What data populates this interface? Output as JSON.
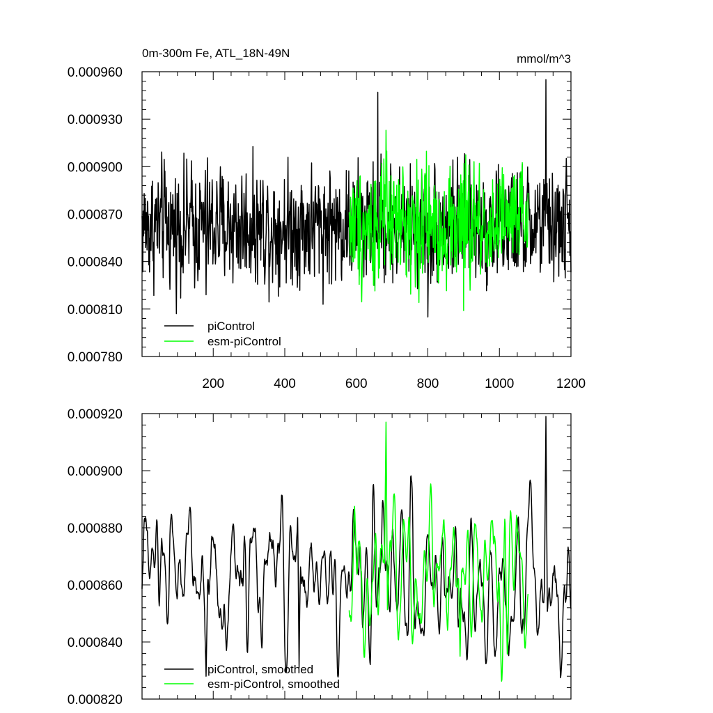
{
  "chart_data": [
    {
      "type": "line",
      "title": "0m-300m Fe, ATL_18N-49N",
      "units": "mmol/m^3",
      "xlabel": "",
      "ylabel": "",
      "xlim": [
        1,
        1200
      ],
      "ylim": [
        0.00078,
        0.00096
      ],
      "x_ticks": [
        200,
        400,
        600,
        800,
        1000,
        1200
      ],
      "x_tick_labels": [
        "200",
        "400",
        "600",
        "800",
        "1000",
        "1200"
      ],
      "y_ticks": [
        0.00078,
        0.00081,
        0.00084,
        0.00087,
        0.0009,
        0.00093,
        0.00096
      ],
      "y_tick_labels": [
        "0.000780",
        "0.000810",
        "0.000840",
        "0.000870",
        "0.000900",
        "0.000930",
        "0.000960"
      ],
      "legend_position": "bottom-left",
      "series": [
        {
          "name": "piControl",
          "color": "#000000",
          "x_range": [
            1,
            1200
          ],
          "mean": 0.000862,
          "sd": 1.8e-05,
          "peaks": [
            [
              180,
              0.000819
            ],
            [
              660,
              0.000947
            ],
            [
              800,
              0.000805
            ],
            [
              1130,
              0.000955
            ]
          ],
          "smoothing": 0
        },
        {
          "name": "esm-piControl",
          "color": "#00ff00",
          "x_range": [
            580,
            1080
          ],
          "mean": 0.000864,
          "sd": 1.8e-05,
          "peaks": [
            [
              683,
              0.000923
            ],
            [
              900,
              0.000809
            ]
          ],
          "smoothing": 0
        }
      ]
    },
    {
      "type": "line",
      "title": "",
      "units": "",
      "xlabel": "",
      "ylabel": "",
      "xlim": [
        1,
        1200
      ],
      "ylim": [
        0.00082,
        0.00092
      ],
      "x_ticks": [
        200,
        400,
        600,
        800,
        1000,
        1200
      ],
      "x_tick_labels": [],
      "y_ticks": [
        0.00082,
        0.00084,
        0.00086,
        0.00088,
        0.0009,
        0.00092
      ],
      "y_tick_labels": [
        "0.000820",
        "0.000840",
        "0.000860",
        "0.000880",
        "0.000900",
        "0.000920"
      ],
      "legend_position": "bottom-left",
      "series": [
        {
          "name": "piControl, smoothed",
          "color": "#000000",
          "x_range": [
            1,
            1200
          ],
          "mean": 0.000862,
          "sd": 1.3e-05,
          "peaks": [
            [
              180,
              0.000828
            ],
            [
              440,
              0.000831
            ],
            [
              755,
              0.000896
            ],
            [
              1130,
              0.000919
            ]
          ],
          "smoothing": 2
        },
        {
          "name": "esm-piControl, smoothed",
          "color": "#00ff00",
          "x_range": [
            580,
            1080
          ],
          "mean": 0.000864,
          "sd": 1.3e-05,
          "peaks": [
            [
              683,
              0.000917
            ],
            [
              890,
              0.000835
            ]
          ],
          "smoothing": 2
        }
      ]
    }
  ]
}
